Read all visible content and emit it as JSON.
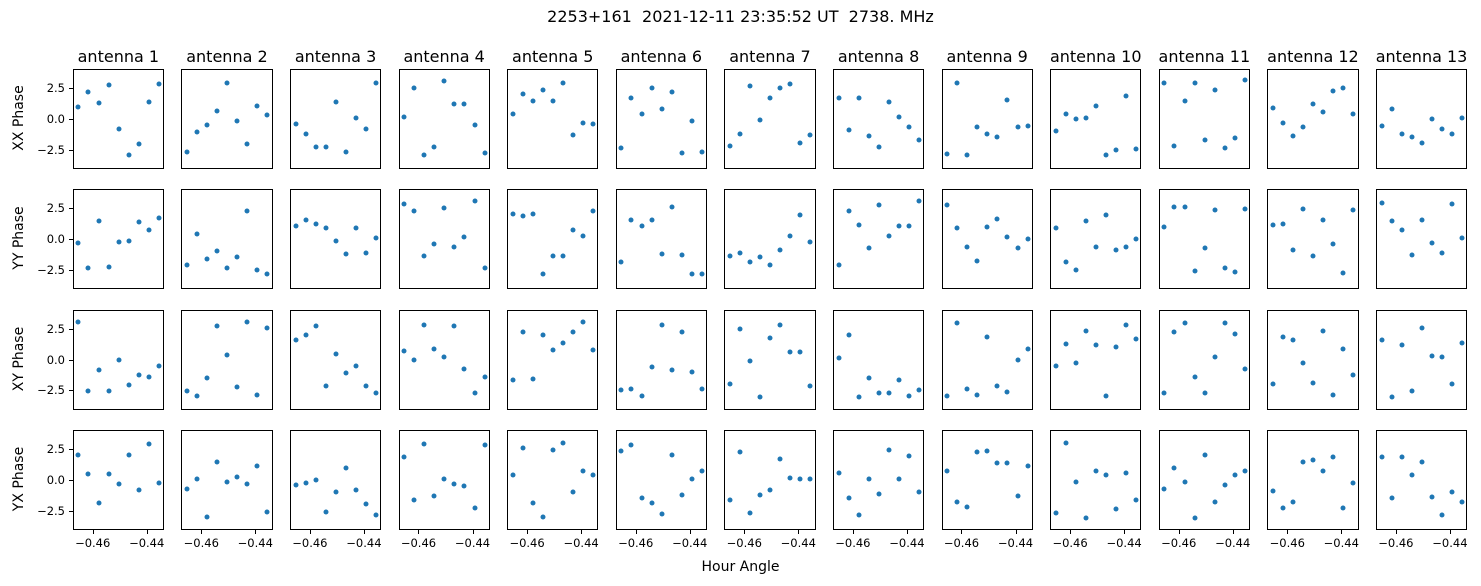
{
  "title": "2253+161  2021-12-11 23:35:52 UT  2738. MHz",
  "xlabel": "Hour Angle",
  "row_labels": [
    "XX Phase",
    "YY Phase",
    "XY Phase",
    "YX Phase"
  ],
  "col_titles": [
    "antenna 1",
    "antenna 2",
    "antenna 3",
    "antenna 4",
    "antenna 5",
    "antenna 6",
    "antenna 7",
    "antenna 8",
    "antenna 9",
    "antenna 10",
    "antenna 11",
    "antenna 12",
    "antenna 13"
  ],
  "y_tick_labels": [
    "2.5",
    "0.0",
    "−2.5"
  ],
  "x_tick_labels": [
    "−0.46",
    "−0.44"
  ],
  "accent_color": "#1f77b4",
  "chart_data": {
    "type": "scatter",
    "title": "2253+161  2021-12-11 23:35:52 UT  2738. MHz",
    "xlabel": "Hour Angle",
    "marker_color": "#1f77b4",
    "grid": false,
    "legend": "none",
    "x": [
      -0.4656,
      -0.4618,
      -0.458,
      -0.4542,
      -0.4504,
      -0.4466,
      -0.4428,
      -0.439,
      -0.4352
    ],
    "xlim": [
      -0.4674,
      -0.4336
    ],
    "ylim": [
      -4.05,
      4.05
    ],
    "x_tick_values": [
      -0.46,
      -0.44
    ],
    "y_tick_values": [
      2.5,
      0.0,
      -2.5
    ],
    "rows": [
      {
        "label": "XX Phase",
        "antennas": [
          {
            "name": "antenna 1",
            "y": [
              1.0,
              2.2,
              1.3,
              2.8,
              -0.8,
              -3.0,
              -2.1,
              1.4,
              2.9
            ]
          },
          {
            "name": "antenna 2",
            "y": [
              -2.7,
              -1.1,
              -0.5,
              0.7,
              3.0,
              -0.2,
              -2.1,
              1.1,
              0.3
            ]
          },
          {
            "name": "antenna 3",
            "y": [
              -0.4,
              -1.2,
              -2.3,
              -2.3,
              1.4,
              -2.7,
              0.1,
              -0.8,
              3.0
            ]
          },
          {
            "name": "antenna 4",
            "y": [
              0.2,
              2.6,
              -3.0,
              -2.3,
              3.1,
              1.2,
              1.2,
              -0.5,
              -2.8
            ]
          },
          {
            "name": "antenna 5",
            "y": [
              0.4,
              2.1,
              1.5,
              2.4,
              1.5,
              3.0,
              -1.3,
              -0.3,
              -0.4
            ]
          },
          {
            "name": "antenna 6",
            "y": [
              -2.4,
              1.7,
              0.4,
              2.6,
              0.8,
              2.2,
              -2.8,
              -0.2,
              -2.7
            ]
          },
          {
            "name": "antenna 7",
            "y": [
              -2.2,
              -1.2,
              2.7,
              -0.1,
              1.7,
              2.6,
              2.9,
              -2.0,
              -1.3
            ]
          },
          {
            "name": "antenna 8",
            "y": [
              1.7,
              -0.9,
              1.7,
              -1.4,
              -2.3,
              1.4,
              0.2,
              -0.7,
              -1.7
            ]
          },
          {
            "name": "antenna 9",
            "y": [
              -2.9,
              3.0,
              -3.0,
              -0.7,
              -1.2,
              -1.5,
              1.6,
              -0.7,
              -0.6
            ]
          },
          {
            "name": "antenna 10",
            "y": [
              -1.0,
              0.4,
              0.0,
              0.1,
              1.1,
              -3.0,
              -2.6,
              1.9,
              -2.5
            ]
          },
          {
            "name": "antenna 11",
            "y": [
              3.0,
              -2.2,
              1.5,
              3.0,
              -1.7,
              2.4,
              -2.4,
              -1.6,
              3.2
            ]
          },
          {
            "name": "antenna 12",
            "y": [
              0.9,
              -0.3,
              -1.4,
              -0.7,
              1.2,
              0.6,
              2.3,
              2.6,
              0.4
            ]
          },
          {
            "name": "antenna 13",
            "y": [
              -0.6,
              0.8,
              -1.2,
              -1.5,
              -2.0,
              0.0,
              -0.8,
              -1.2,
              0.1
            ]
          }
        ]
      },
      {
        "label": "YY Phase",
        "antennas": [
          {
            "name": "antenna 1",
            "y": [
              -0.3,
              -2.4,
              1.5,
              -2.3,
              -0.2,
              -0.1,
              1.4,
              0.8,
              1.8
            ]
          },
          {
            "name": "antenna 2",
            "y": [
              -2.1,
              0.4,
              -1.6,
              -1.0,
              -2.4,
              -1.5,
              2.3,
              -2.5,
              -2.9
            ]
          },
          {
            "name": "antenna 3",
            "y": [
              1.1,
              1.6,
              1.3,
              0.9,
              -0.1,
              -1.2,
              0.9,
              -1.1,
              0.1
            ]
          },
          {
            "name": "antenna 4",
            "y": [
              2.9,
              2.3,
              -1.4,
              -0.4,
              2.6,
              -0.6,
              0.2,
              3.2,
              -2.4
            ]
          },
          {
            "name": "antenna 5",
            "y": [
              2.1,
              1.9,
              2.1,
              -2.9,
              -1.4,
              -1.4,
              0.8,
              0.3,
              2.3
            ]
          },
          {
            "name": "antenna 6",
            "y": [
              -1.9,
              1.6,
              1.1,
              1.6,
              -1.2,
              2.7,
              -1.3,
              -2.9,
              -2.9
            ]
          },
          {
            "name": "antenna 7",
            "y": [
              -1.4,
              -1.1,
              -1.9,
              -1.5,
              -2.1,
              -0.9,
              0.3,
              2.0,
              -0.2
            ]
          },
          {
            "name": "antenna 8",
            "y": [
              -2.1,
              2.3,
              1.2,
              -0.7,
              2.8,
              0.3,
              1.1,
              1.1,
              3.2
            ]
          },
          {
            "name": "antenna 9",
            "y": [
              2.8,
              0.9,
              -0.6,
              -1.8,
              1.0,
              1.7,
              0.2,
              -0.7,
              0.0
            ]
          },
          {
            "name": "antenna 10",
            "y": [
              0.9,
              -1.9,
              -2.5,
              1.5,
              -0.6,
              2.0,
              -0.9,
              -0.6,
              0.0
            ]
          },
          {
            "name": "antenna 11",
            "y": [
              1.0,
              2.7,
              2.7,
              -2.6,
              -0.7,
              2.4,
              -2.4,
              -2.7,
              2.5
            ]
          },
          {
            "name": "antenna 12",
            "y": [
              1.2,
              1.3,
              -0.9,
              2.5,
              -1.4,
              1.6,
              -0.4,
              -2.8,
              2.4
            ]
          },
          {
            "name": "antenna 13",
            "y": [
              3.0,
              1.5,
              0.8,
              -1.3,
              1.6,
              -0.3,
              -1.1,
              2.9,
              0.1
            ]
          }
        ]
      },
      {
        "label": "XY Phase",
        "antennas": [
          {
            "name": "antenna 1",
            "y": [
              3.1,
              -2.6,
              -0.9,
              -2.6,
              0.0,
              -2.1,
              -1.3,
              -1.4,
              -0.5
            ]
          },
          {
            "name": "antenna 2",
            "y": [
              -2.6,
              -3.0,
              -1.5,
              2.8,
              0.4,
              -2.3,
              3.1,
              -2.9,
              2.6
            ]
          },
          {
            "name": "antenna 3",
            "y": [
              1.6,
              2.0,
              2.8,
              -2.2,
              0.5,
              -1.1,
              -0.5,
              -2.2,
              -2.8
            ]
          },
          {
            "name": "antenna 4",
            "y": [
              0.7,
              0.0,
              2.9,
              0.9,
              0.2,
              2.8,
              -0.8,
              -2.8,
              -1.4
            ]
          },
          {
            "name": "antenna 5",
            "y": [
              -1.7,
              2.3,
              -1.6,
              2.0,
              0.8,
              1.4,
              2.3,
              3.1,
              0.8
            ]
          },
          {
            "name": "antenna 6",
            "y": [
              -2.5,
              -2.4,
              -3.0,
              -0.6,
              2.9,
              -0.9,
              2.3,
              -1.0,
              -2.4
            ]
          },
          {
            "name": "antenna 7",
            "y": [
              -2.0,
              2.5,
              -0.1,
              -3.1,
              1.8,
              2.9,
              0.6,
              0.6,
              -2.2
            ]
          },
          {
            "name": "antenna 8",
            "y": [
              0.1,
              2.0,
              -3.1,
              -1.5,
              -2.8,
              -2.8,
              -1.7,
              -3.0,
              -2.5
            ]
          },
          {
            "name": "antenna 9",
            "y": [
              -3.0,
              3.0,
              -2.4,
              -2.9,
              1.9,
              -2.2,
              -2.7,
              0.0,
              0.9
            ]
          },
          {
            "name": "antenna 10",
            "y": [
              -0.5,
              1.3,
              -0.3,
              2.4,
              1.2,
              -3.0,
              1.0,
              2.9,
              1.7
            ]
          },
          {
            "name": "antenna 11",
            "y": [
              -2.8,
              2.3,
              3.0,
              -1.4,
              -2.8,
              0.2,
              3.0,
              2.1,
              -0.8
            ]
          },
          {
            "name": "antenna 12",
            "y": [
              -2.0,
              1.9,
              1.6,
              -0.3,
              -1.9,
              2.4,
              -2.9,
              0.9,
              -1.3
            ]
          },
          {
            "name": "antenna 13",
            "y": [
              1.6,
              -3.1,
              1.2,
              -2.6,
              2.6,
              0.3,
              0.2,
              -2.0,
              1.4
            ]
          }
        ]
      },
      {
        "label": "YX Phase",
        "antennas": [
          {
            "name": "antenna 1",
            "y": [
              2.1,
              0.5,
              -1.9,
              0.5,
              -0.3,
              2.1,
              -0.8,
              3.0,
              -0.2
            ]
          },
          {
            "name": "antenna 2",
            "y": [
              -0.7,
              0.1,
              -3.0,
              1.5,
              -0.1,
              0.3,
              -0.3,
              1.2,
              -2.6
            ]
          },
          {
            "name": "antenna 3",
            "y": [
              -0.4,
              -0.2,
              0.0,
              -2.6,
              -1.0,
              1.0,
              -0.8,
              -2.0,
              -2.9
            ]
          },
          {
            "name": "antenna 4",
            "y": [
              1.9,
              -1.6,
              3.0,
              -1.3,
              0.1,
              -0.3,
              -0.5,
              -2.3,
              2.9
            ]
          },
          {
            "name": "antenna 5",
            "y": [
              0.4,
              2.7,
              -1.9,
              -3.0,
              2.5,
              3.1,
              -1.0,
              0.8,
              0.4
            ]
          },
          {
            "name": "antenna 6",
            "y": [
              2.4,
              2.9,
              -1.5,
              -1.9,
              -2.8,
              2.1,
              -1.2,
              0.1,
              0.8
            ]
          },
          {
            "name": "antenna 7",
            "y": [
              -1.6,
              2.3,
              -2.7,
              -1.2,
              -0.8,
              1.8,
              0.2,
              0.1,
              0.1
            ]
          },
          {
            "name": "antenna 8",
            "y": [
              0.6,
              -1.5,
              -2.9,
              0.1,
              -1.1,
              2.5,
              0.1,
              2.0,
              -1.0
            ]
          },
          {
            "name": "antenna 9",
            "y": [
              0.8,
              -1.8,
              -2.2,
              2.3,
              2.4,
              1.4,
              1.4,
              -1.3,
              1.2
            ]
          },
          {
            "name": "antenna 10",
            "y": [
              -2.7,
              3.1,
              -0.1,
              -3.1,
              0.8,
              0.4,
              -2.4,
              0.6,
              -1.6
            ]
          },
          {
            "name": "antenna 11",
            "y": [
              -0.7,
              1.0,
              -0.1,
              -3.1,
              2.1,
              -1.8,
              -0.4,
              0.4,
              0.8
            ]
          },
          {
            "name": "antenna 12",
            "y": [
              -0.9,
              -2.3,
              -1.8,
              1.5,
              1.7,
              0.8,
              1.9,
              -2.3,
              -0.2
            ]
          },
          {
            "name": "antenna 13",
            "y": [
              1.9,
              -1.5,
              1.9,
              0.4,
              1.5,
              -1.4,
              -2.9,
              -1.0,
              -1.8
            ]
          }
        ]
      }
    ]
  }
}
